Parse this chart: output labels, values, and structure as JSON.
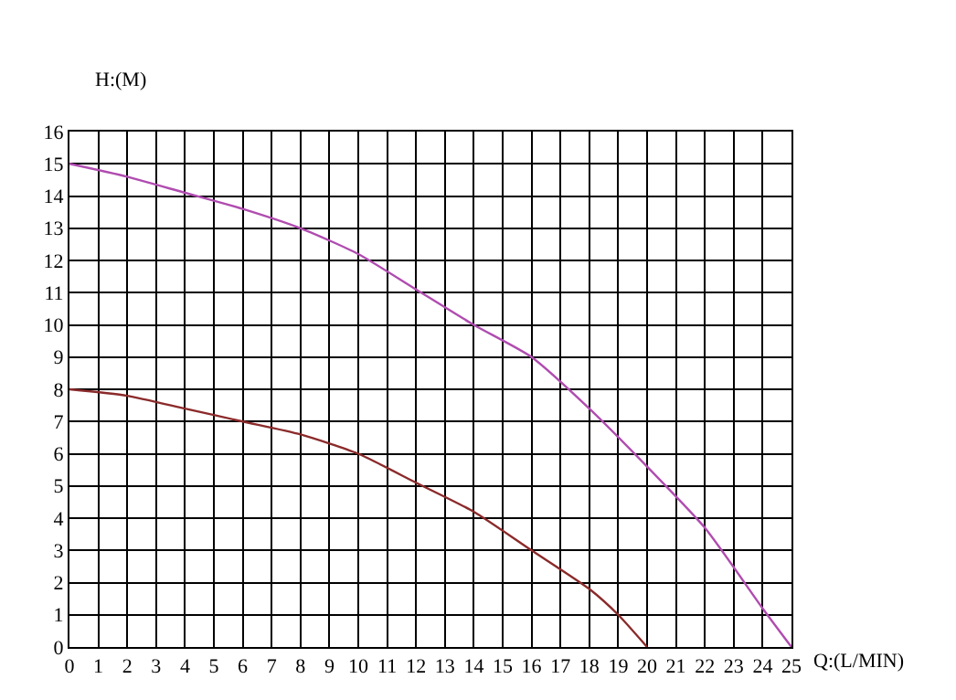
{
  "chart_data": {
    "type": "line",
    "xlabel": "Q:(L/MIN)",
    "ylabel": "H:(M)",
    "xlim": [
      0,
      25
    ],
    "xticks": [
      0,
      1,
      2,
      3,
      4,
      5,
      6,
      7,
      8,
      9,
      10,
      11,
      12,
      13,
      14,
      15,
      16,
      17,
      18,
      19,
      20,
      21,
      22,
      23,
      24,
      25
    ],
    "ylim": [
      0,
      16
    ],
    "yticks": [
      0,
      1,
      2,
      3,
      4,
      5,
      6,
      7,
      8,
      9,
      10,
      11,
      12,
      13,
      14,
      15,
      16
    ],
    "grid": true,
    "marker": "none",
    "line_style": "solid",
    "series": [
      {
        "color": "#8b2a2a",
        "x": [
          0,
          2,
          4,
          6,
          8,
          10,
          12,
          14,
          16,
          18,
          19,
          20
        ],
        "values": [
          8,
          7.8,
          7.4,
          7,
          6.6,
          6,
          5.1,
          4.2,
          3,
          1.8,
          1,
          0
        ]
      },
      {
        "color": "#b04cb0",
        "x": [
          0,
          2,
          4,
          6,
          8,
          10,
          12,
          14,
          16,
          18,
          20,
          22,
          24,
          25
        ],
        "values": [
          15,
          14.6,
          14.1,
          13.6,
          13,
          12.2,
          11.1,
          10,
          9,
          7.4,
          5.6,
          3.7,
          1.2,
          0
        ]
      }
    ]
  }
}
